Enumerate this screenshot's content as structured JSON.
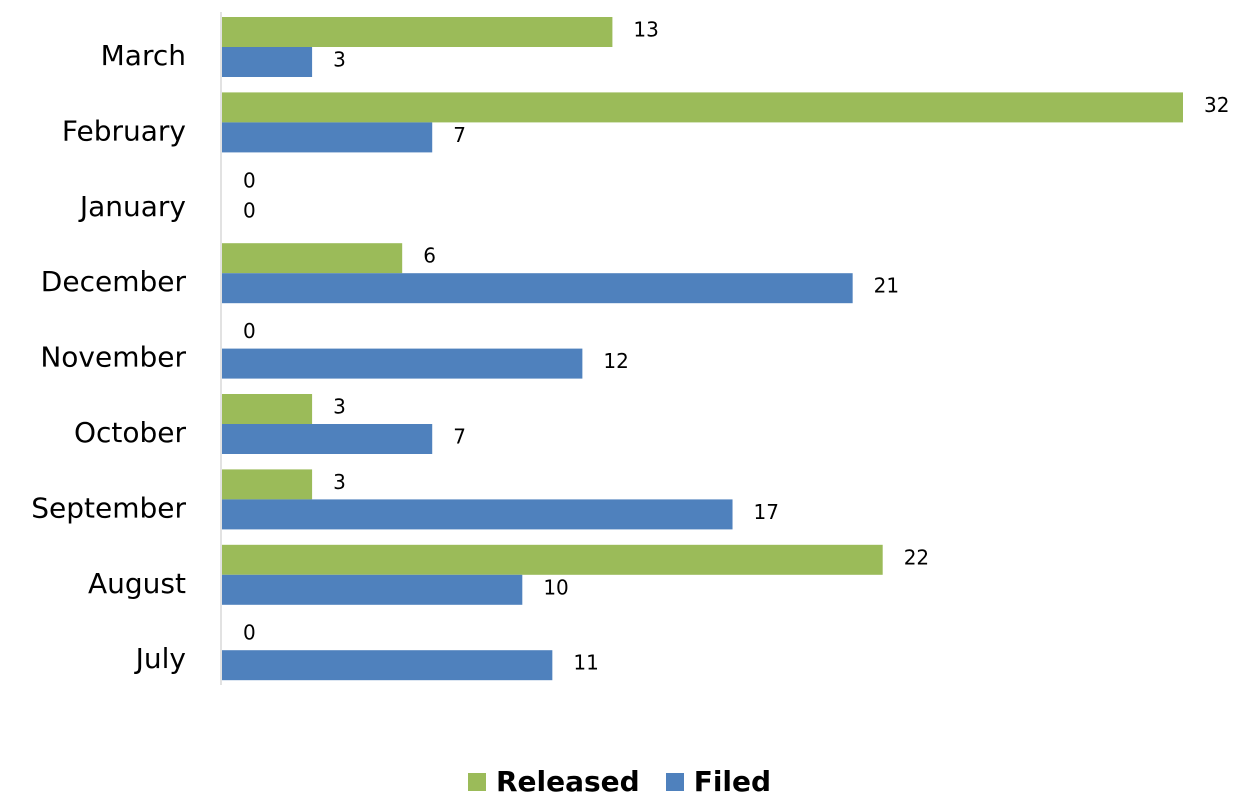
{
  "chart_data": {
    "type": "bar",
    "orientation": "horizontal",
    "categories": [
      "March",
      "February",
      "January",
      "December",
      "November",
      "October",
      "September",
      "August",
      "July"
    ],
    "series": [
      {
        "name": "Released",
        "color": "#9bbb59",
        "values": [
          13,
          32,
          0,
          6,
          0,
          3,
          3,
          22,
          0
        ]
      },
      {
        "name": "Filed",
        "color": "#4f81bd",
        "values": [
          3,
          7,
          0,
          21,
          12,
          7,
          17,
          10,
          11
        ]
      }
    ],
    "xlim": [
      0,
      32
    ],
    "grid": false,
    "data_labels": true,
    "legend_position": "bottom"
  }
}
